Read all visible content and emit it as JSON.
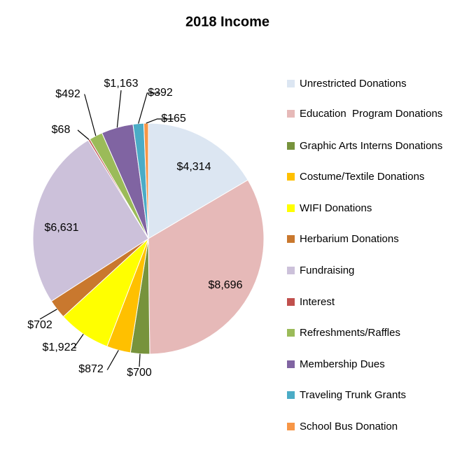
{
  "chart_data": {
    "type": "pie",
    "title": "2018 Income",
    "categories": [
      "Unrestricted Donations",
      "Education  Program Donations",
      "Graphic Arts Interns Donations",
      "Costume/Textile Donations",
      "WIFI Donations",
      "Herbarium Donations",
      "Fundraising",
      "Interest",
      "Refreshments/Raffles",
      "Membership Dues",
      "Traveling Trunk Grants",
      "School Bus Donation"
    ],
    "values": [
      4314,
      8696,
      700,
      872,
      1922,
      702,
      6631,
      68,
      492,
      1163,
      392,
      165
    ],
    "value_labels": [
      "$4,314",
      "$8,696",
      "$700",
      "$872",
      "$1,922",
      "$702",
      "$6,631",
      "$68",
      "$492",
      "$1,163",
      "$392",
      "$165"
    ],
    "colors": [
      "#dce6f2",
      "#e6b9b8",
      "#77933c",
      "#ffc000",
      "#ffff00",
      "#c9782e",
      "#ccc1da",
      "#c0504d",
      "#9bbb59",
      "#8064a2",
      "#4bacc6",
      "#f79646"
    ],
    "legend": "right"
  }
}
